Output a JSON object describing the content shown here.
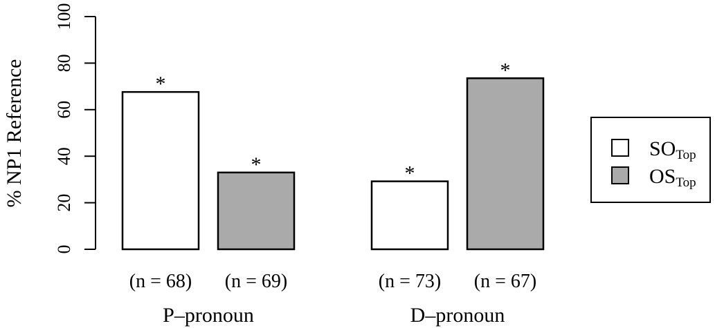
{
  "chart_data": {
    "type": "bar",
    "ylabel": "% NP1 Reference",
    "ylim": [
      0,
      100
    ],
    "yticks": [
      0,
      20,
      40,
      60,
      80,
      100
    ],
    "groups": [
      {
        "label": "P–pronoun",
        "bars": [
          {
            "series": "SO",
            "value": 67.6,
            "n_label": "(n = 68)",
            "annotation": "*"
          },
          {
            "series": "OS",
            "value": 33.0,
            "n_label": "(n = 69)",
            "annotation": "*"
          }
        ]
      },
      {
        "label": "D–pronoun",
        "bars": [
          {
            "series": "SO",
            "value": 29.2,
            "n_label": "(n = 73)",
            "annotation": "*"
          },
          {
            "series": "OS",
            "value": 73.5,
            "n_label": "(n = 67)",
            "annotation": "*"
          }
        ]
      }
    ],
    "series": [
      {
        "key": "SO",
        "name": "SO",
        "subscript": "Top",
        "color": "#ffffff",
        "values": [
          67.6,
          29.2
        ]
      },
      {
        "key": "OS",
        "name": "OS",
        "subscript": "Top",
        "color": "#aaaaaa",
        "values": [
          33.0,
          73.5
        ]
      }
    ],
    "legend_position": "right",
    "grid": false
  }
}
